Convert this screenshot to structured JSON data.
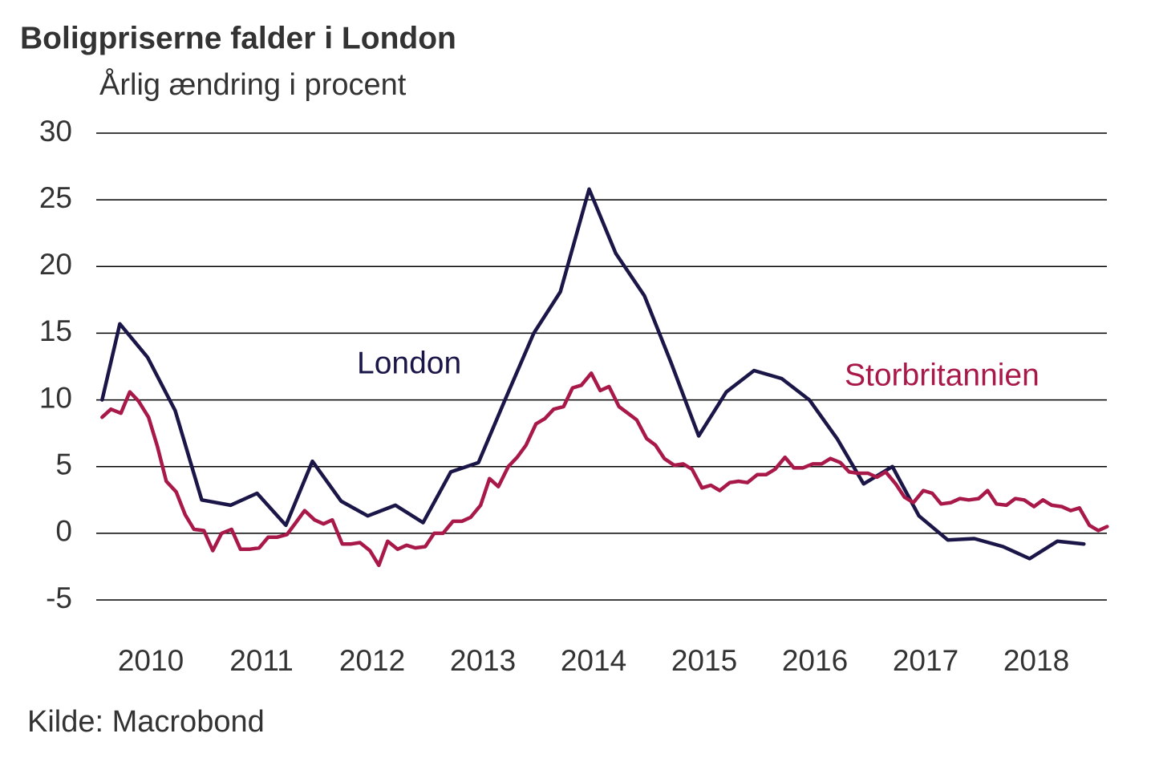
{
  "chart_data": {
    "type": "line",
    "title": "Boligpriserne falder i London",
    "subtitle": "Årlig ændring i procent",
    "source": "Kilde: Macrobond",
    "xlim": [
      2010,
      2019.15
    ],
    "xticks": [
      {
        "value": 2010.5,
        "label": "2010"
      },
      {
        "value": 2011.5,
        "label": "2011"
      },
      {
        "value": 2012.5,
        "label": "2012"
      },
      {
        "value": 2013.5,
        "label": "2013"
      },
      {
        "value": 2014.5,
        "label": "2014"
      },
      {
        "value": 2015.5,
        "label": "2015"
      },
      {
        "value": 2016.5,
        "label": "2016"
      },
      {
        "value": 2017.5,
        "label": "2017"
      },
      {
        "value": 2018.5,
        "label": "2018"
      }
    ],
    "ylim": [
      -5,
      30
    ],
    "yticks": [
      30,
      25,
      20,
      15,
      10,
      5,
      0,
      -5
    ],
    "grid": true,
    "legend": "inline",
    "series": [
      {
        "name": "London",
        "color": "#1b1648",
        "x": [
          2010.06,
          2010.22,
          2010.47,
          2010.72,
          2010.96,
          2011.22,
          2011.46,
          2011.72,
          2011.96,
          2012.22,
          2012.46,
          2012.71,
          2012.96,
          2013.21,
          2013.46,
          2013.7,
          2013.96,
          2014.2,
          2014.46,
          2014.7,
          2014.96,
          2015.2,
          2015.45,
          2015.7,
          2015.95,
          2016.2,
          2016.45,
          2016.7,
          2016.94,
          2017.2,
          2017.44,
          2017.7,
          2017.94,
          2018.2,
          2018.44,
          2018.69,
          2018.93
        ],
        "values": [
          10,
          15.7,
          13.2,
          9.2,
          2.5,
          2.1,
          3.0,
          0.6,
          5.4,
          2.4,
          1.3,
          2.1,
          0.8,
          4.6,
          5.3,
          10,
          15,
          18.1,
          25.8,
          21,
          17.8,
          12.8,
          7.3,
          10.6,
          12.2,
          11.6,
          10,
          7.1,
          3.7,
          5.0,
          1.3,
          -0.5,
          -0.4,
          -1.0,
          -1.9,
          -0.6,
          -0.8
        ]
      },
      {
        "name": "Storbritannien",
        "color": "#a8194a",
        "x": [
          2010.06,
          2010.14,
          2010.23,
          2010.31,
          2010.39,
          2010.48,
          2010.56,
          2010.64,
          2010.73,
          2010.81,
          2010.89,
          2010.98,
          2011.06,
          2011.14,
          2011.23,
          2011.31,
          2011.39,
          2011.48,
          2011.56,
          2011.64,
          2011.73,
          2011.81,
          2011.89,
          2011.98,
          2012.06,
          2012.14,
          2012.23,
          2012.31,
          2012.39,
          2012.48,
          2012.56,
          2012.64,
          2012.73,
          2012.81,
          2012.89,
          2012.98,
          2013.06,
          2013.14,
          2013.23,
          2013.31,
          2013.39,
          2013.48,
          2013.56,
          2013.64,
          2013.73,
          2013.81,
          2013.89,
          2013.98,
          2014.06,
          2014.14,
          2014.23,
          2014.31,
          2014.39,
          2014.48,
          2014.56,
          2014.64,
          2014.73,
          2014.81,
          2014.89,
          2014.98,
          2015.06,
          2015.14,
          2015.23,
          2015.31,
          2015.39,
          2015.48,
          2015.56,
          2015.64,
          2015.73,
          2015.81,
          2015.89,
          2015.98,
          2016.06,
          2016.14,
          2016.23,
          2016.31,
          2016.39,
          2016.48,
          2016.56,
          2016.64,
          2016.73,
          2016.81,
          2016.89,
          2016.98,
          2017.06,
          2017.14,
          2017.23,
          2017.31,
          2017.39,
          2017.48,
          2017.56,
          2017.64,
          2017.73,
          2017.81,
          2017.89,
          2017.98,
          2018.06,
          2018.14,
          2018.23,
          2018.31,
          2018.39,
          2018.48,
          2018.56,
          2018.64,
          2018.73,
          2018.81,
          2018.89,
          2018.98,
          2019.06,
          2019.14
        ],
        "values": [
          8.7,
          9.3,
          9.0,
          10.6,
          9.9,
          8.7,
          6.5,
          3.9,
          3.1,
          1.4,
          0.3,
          0.2,
          -1.3,
          0.0,
          0.3,
          -1.2,
          -1.2,
          -1.1,
          -0.3,
          -0.3,
          -0.1,
          0.8,
          1.7,
          1.0,
          0.7,
          1.0,
          -0.8,
          -0.8,
          -0.7,
          -1.3,
          -2.4,
          -0.6,
          -1.2,
          -0.9,
          -1.1,
          -1.0,
          0.0,
          0.0,
          0.9,
          0.9,
          1.2,
          2.1,
          4.1,
          3.5,
          5.0,
          5.7,
          6.6,
          8.2,
          8.6,
          9.3,
          9.5,
          10.9,
          11.1,
          12.0,
          10.7,
          11.0,
          9.5,
          9.0,
          8.5,
          7.1,
          6.6,
          5.6,
          5.1,
          5.2,
          4.8,
          3.4,
          3.6,
          3.2,
          3.8,
          3.9,
          3.8,
          4.4,
          4.4,
          4.8,
          5.7,
          4.9,
          4.9,
          5.2,
          5.2,
          5.6,
          5.3,
          4.6,
          4.5,
          4.5,
          4.2,
          4.6,
          3.7,
          2.7,
          2.3,
          3.2,
          3.0,
          2.2,
          2.3,
          2.6,
          2.5,
          2.6,
          3.2,
          2.2,
          2.1,
          2.6,
          2.5,
          2.0,
          2.5,
          2.1,
          2.0,
          1.7,
          1.9,
          0.6,
          0.2,
          0.5
        ]
      }
    ]
  }
}
